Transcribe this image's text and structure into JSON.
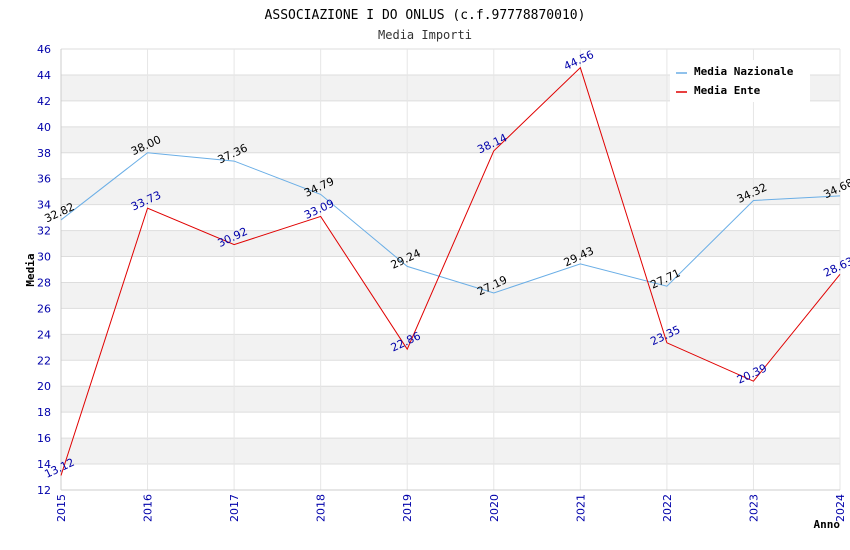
{
  "chart_data": {
    "type": "line",
    "title": "ASSOCIAZIONE I DO ONLUS (c.f.97778870010)",
    "subtitle": "Media Importi",
    "xlabel": "Anno",
    "ylabel": "Media",
    "x": [
      "2015",
      "2016",
      "2017",
      "2018",
      "2019",
      "2020",
      "2021",
      "2022",
      "2023",
      "2024"
    ],
    "ylim": [
      12,
      46
    ],
    "yticks": [
      "12",
      "14",
      "16",
      "18",
      "20",
      "22",
      "24",
      "26",
      "28",
      "30",
      "32",
      "34",
      "36",
      "38",
      "40",
      "42",
      "44",
      "46"
    ],
    "grid": "horizontal, alternating bands",
    "legend_position": "top-right",
    "series": [
      {
        "name": "Media Nazionale",
        "color": "#6aaee6",
        "values": [
          32.82,
          38.0,
          37.36,
          34.79,
          29.24,
          27.19,
          29.43,
          27.71,
          34.32,
          34.68
        ],
        "labels": [
          "32.82",
          "38.00",
          "37.36",
          "34.79",
          "29.24",
          "27.19",
          "29.43",
          "27.71",
          "34.32",
          "34.68"
        ]
      },
      {
        "name": "Media Ente",
        "color": "#e00000",
        "values": [
          13.12,
          33.73,
          30.92,
          33.09,
          22.86,
          38.14,
          44.56,
          23.35,
          20.39,
          28.63
        ],
        "labels": [
          "13.12",
          "33.73",
          "30.92",
          "33.09",
          "22.86",
          "38.14",
          "44.56",
          "23.35",
          "20.39",
          "28.63"
        ]
      }
    ]
  }
}
